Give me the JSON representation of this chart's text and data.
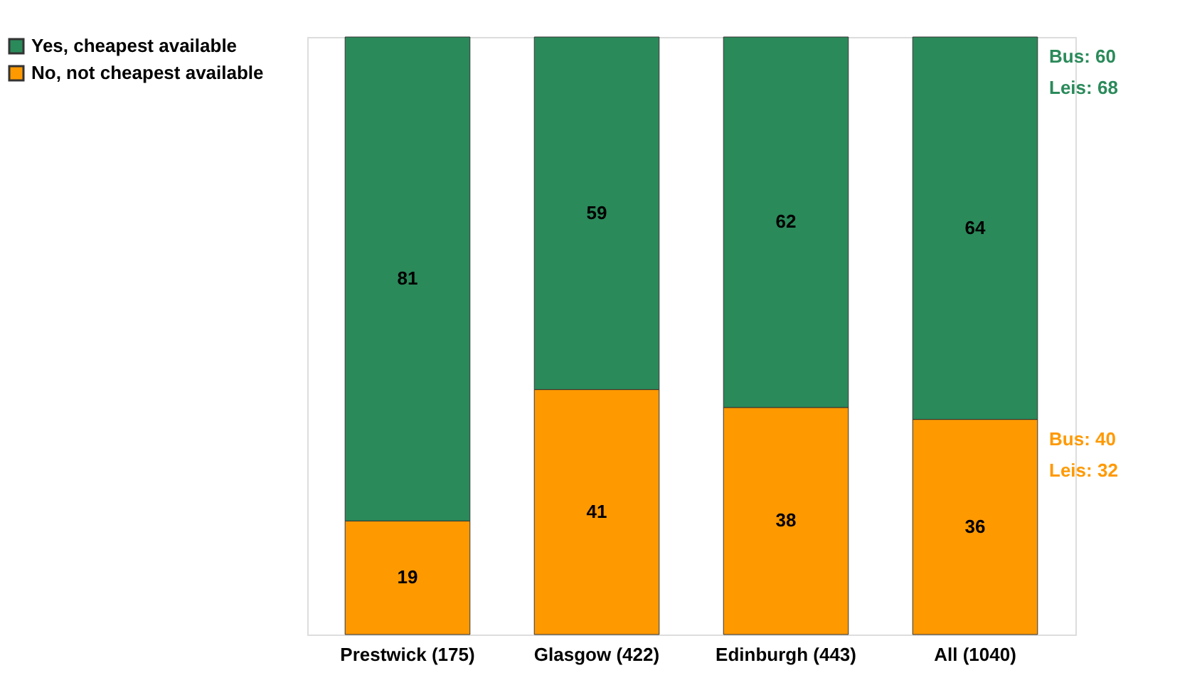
{
  "chart_data": {
    "type": "bar",
    "stacked": true,
    "categories": [
      "Prestwick (175)",
      "Glasgow (422)",
      "Edinburgh (443)",
      "All (1040)"
    ],
    "series": [
      {
        "name": "No, not cheapest available",
        "color": "#ff9900",
        "values": [
          19,
          41,
          38,
          36
        ]
      },
      {
        "name": "Yes, cheapest available",
        "color": "#2a8a5a",
        "values": [
          81,
          59,
          62,
          64
        ]
      }
    ],
    "data_labels": true,
    "legend": "left",
    "annotations": [
      "Bus: 60",
      "Leis: 68",
      "Bus: 40",
      "Leis: 32"
    ]
  }
}
